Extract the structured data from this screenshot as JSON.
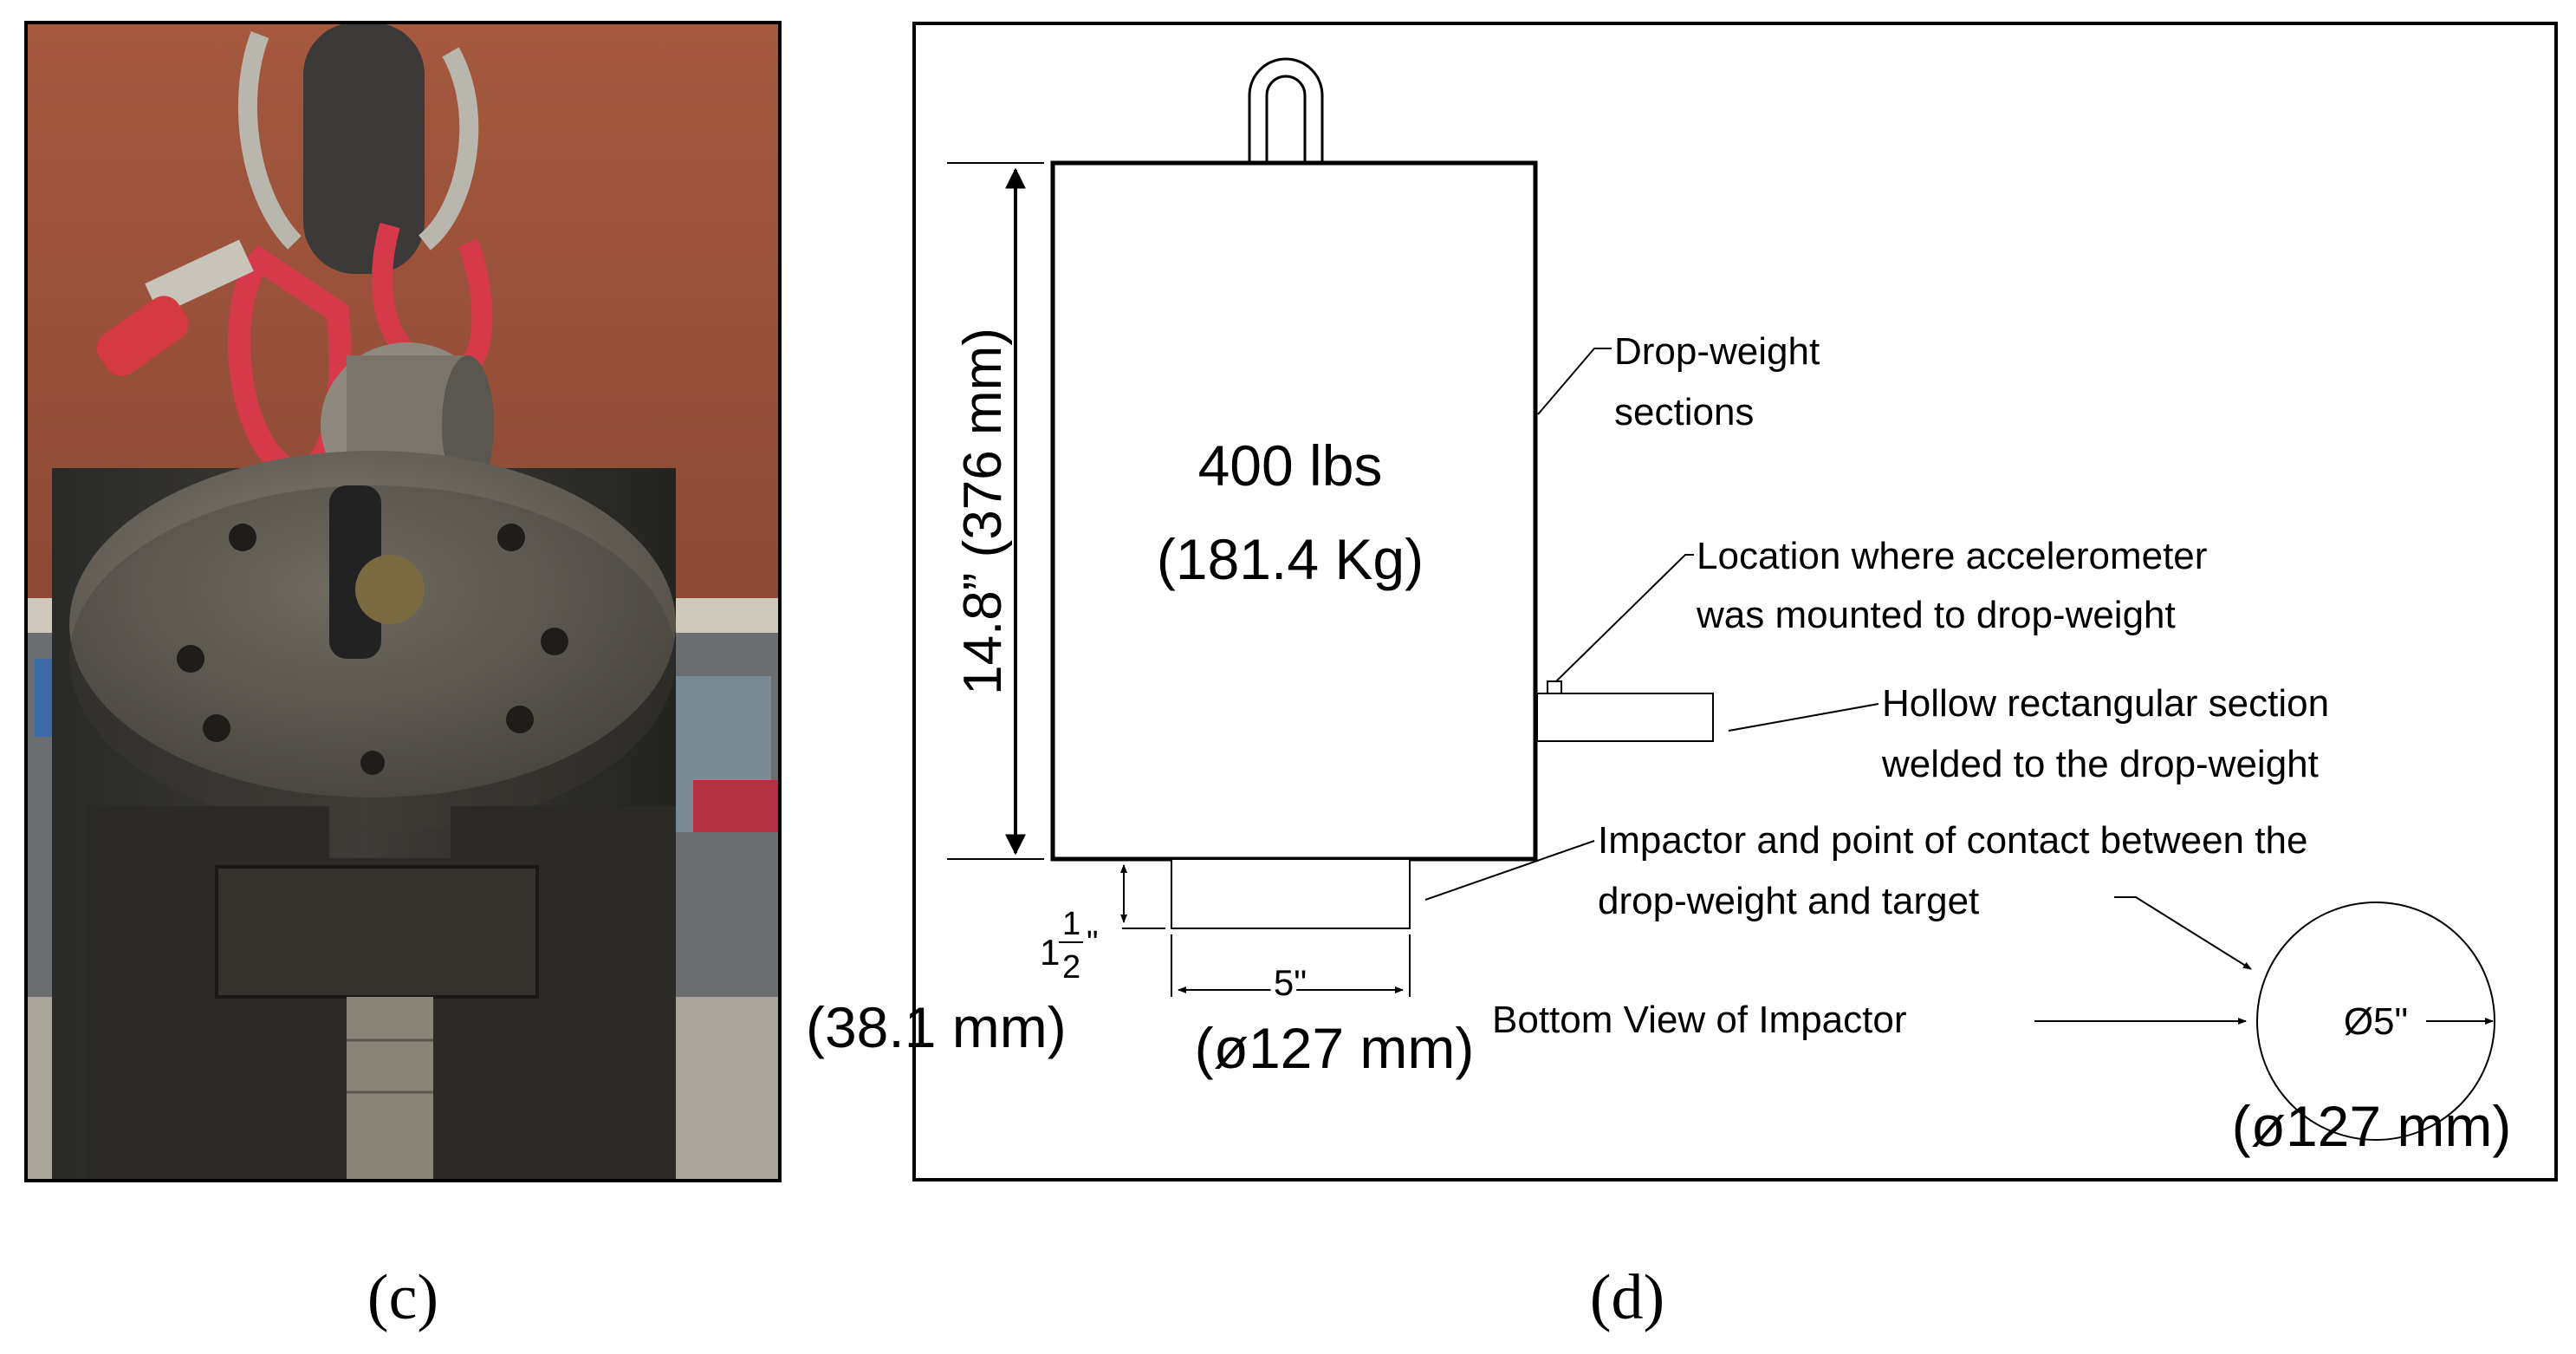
{
  "panels": {
    "c": {
      "caption": "(c)"
    },
    "d": {
      "caption": "(d)"
    }
  },
  "diagram": {
    "weight_lbs": "400 lbs",
    "weight_kg": "(181.4 Kg)",
    "height_dim": "14.8” (376 mm)",
    "label_sections_1": "Drop-weight",
    "label_sections_2": "sections",
    "label_accel_1": "Location where accelerometer",
    "label_accel_2": "was mounted to drop-weight",
    "label_hollow_1": "Hollow rectangular section",
    "label_hollow_2": "welded to the drop-weight",
    "label_impactor_1": "Impactor and point of contact between the",
    "label_impactor_2": "drop-weight and target",
    "impactor_height_whole": "1",
    "impactor_height_num": "1",
    "impactor_height_den": "2",
    "impactor_height_unit": "\"",
    "impactor_height_mm": "(38.1 mm)",
    "impactor_width": "5\"",
    "impactor_width_mm": "(ø127 mm)",
    "bottom_view_label": "Bottom View of Impactor",
    "circle_dia": "Ø5\"",
    "circle_dia_mm": "(ø127 mm)"
  }
}
